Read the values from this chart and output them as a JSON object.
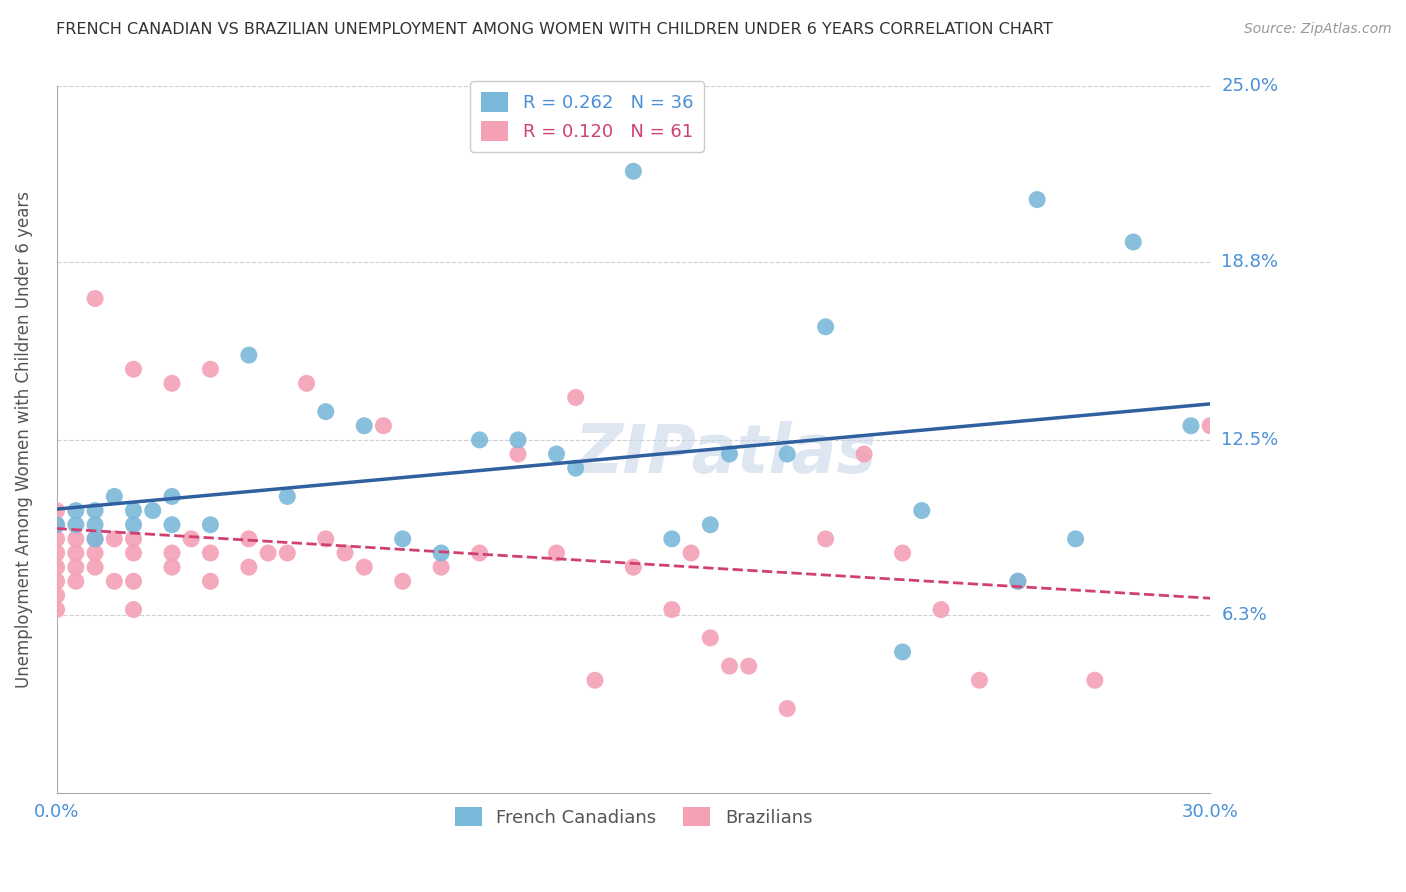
{
  "title": "FRENCH CANADIAN VS BRAZILIAN UNEMPLOYMENT AMONG WOMEN WITH CHILDREN UNDER 6 YEARS CORRELATION CHART",
  "source": "Source: ZipAtlas.com",
  "ylabel": "Unemployment Among Women with Children Under 6 years",
  "xlim": [
    0.0,
    0.3
  ],
  "ylim": [
    0.0,
    0.25
  ],
  "ytick_labels": [
    "25.0%",
    "18.8%",
    "12.5%",
    "6.3%"
  ],
  "ytick_values": [
    0.25,
    0.188,
    0.125,
    0.063
  ],
  "grid_color": "#d0d0d0",
  "background_color": "#ffffff",
  "blue_color": "#7ab8d9",
  "pink_color": "#f4a0b5",
  "line_blue_color": "#3060a0",
  "line_pink_color": "#d04070",
  "blue_R": 0.262,
  "blue_N": 36,
  "pink_R": 0.12,
  "pink_N": 61,
  "french_canadians_x": [
    0.0,
    0.005,
    0.005,
    0.01,
    0.01,
    0.01,
    0.015,
    0.02,
    0.02,
    0.025,
    0.03,
    0.03,
    0.04,
    0.05,
    0.06,
    0.07,
    0.08,
    0.09,
    0.1,
    0.11,
    0.12,
    0.13,
    0.135,
    0.15,
    0.16,
    0.17,
    0.175,
    0.19,
    0.2,
    0.22,
    0.225,
    0.25,
    0.255,
    0.265,
    0.28,
    0.295
  ],
  "french_canadians_y": [
    0.095,
    0.1,
    0.095,
    0.1,
    0.095,
    0.09,
    0.105,
    0.1,
    0.095,
    0.1,
    0.105,
    0.095,
    0.095,
    0.155,
    0.105,
    0.135,
    0.13,
    0.09,
    0.085,
    0.125,
    0.125,
    0.12,
    0.115,
    0.22,
    0.09,
    0.095,
    0.12,
    0.12,
    0.165,
    0.05,
    0.1,
    0.075,
    0.21,
    0.09,
    0.195,
    0.13
  ],
  "brazilians_x": [
    0.0,
    0.0,
    0.0,
    0.0,
    0.0,
    0.0,
    0.0,
    0.0,
    0.005,
    0.005,
    0.005,
    0.005,
    0.01,
    0.01,
    0.01,
    0.01,
    0.015,
    0.015,
    0.02,
    0.02,
    0.02,
    0.02,
    0.02,
    0.03,
    0.03,
    0.03,
    0.035,
    0.04,
    0.04,
    0.04,
    0.05,
    0.05,
    0.055,
    0.06,
    0.065,
    0.07,
    0.075,
    0.08,
    0.085,
    0.09,
    0.1,
    0.11,
    0.12,
    0.13,
    0.135,
    0.14,
    0.15,
    0.16,
    0.165,
    0.17,
    0.175,
    0.18,
    0.19,
    0.2,
    0.21,
    0.22,
    0.23,
    0.24,
    0.25,
    0.27,
    0.3
  ],
  "brazilians_y": [
    0.1,
    0.095,
    0.09,
    0.085,
    0.08,
    0.075,
    0.07,
    0.065,
    0.09,
    0.085,
    0.08,
    0.075,
    0.175,
    0.09,
    0.085,
    0.08,
    0.09,
    0.075,
    0.15,
    0.09,
    0.085,
    0.075,
    0.065,
    0.145,
    0.085,
    0.08,
    0.09,
    0.15,
    0.085,
    0.075,
    0.09,
    0.08,
    0.085,
    0.085,
    0.145,
    0.09,
    0.085,
    0.08,
    0.13,
    0.075,
    0.08,
    0.085,
    0.12,
    0.085,
    0.14,
    0.04,
    0.08,
    0.065,
    0.085,
    0.055,
    0.045,
    0.045,
    0.03,
    0.09,
    0.12,
    0.085,
    0.065,
    0.04,
    0.075,
    0.04,
    0.13
  ]
}
